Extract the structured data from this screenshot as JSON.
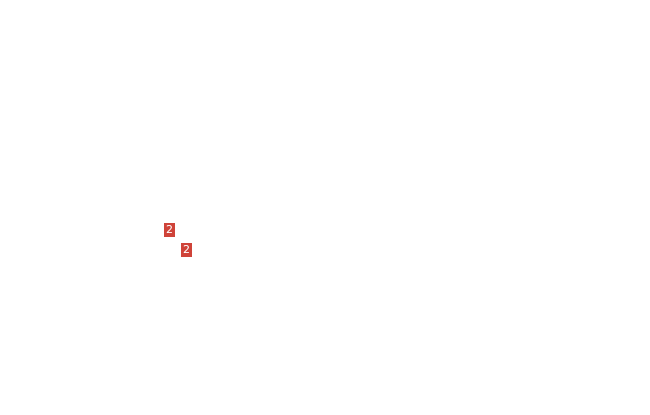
{
  "badge_color": "#cf4339",
  "badges": [
    {
      "label": "2"
    },
    {
      "label": "2"
    }
  ]
}
